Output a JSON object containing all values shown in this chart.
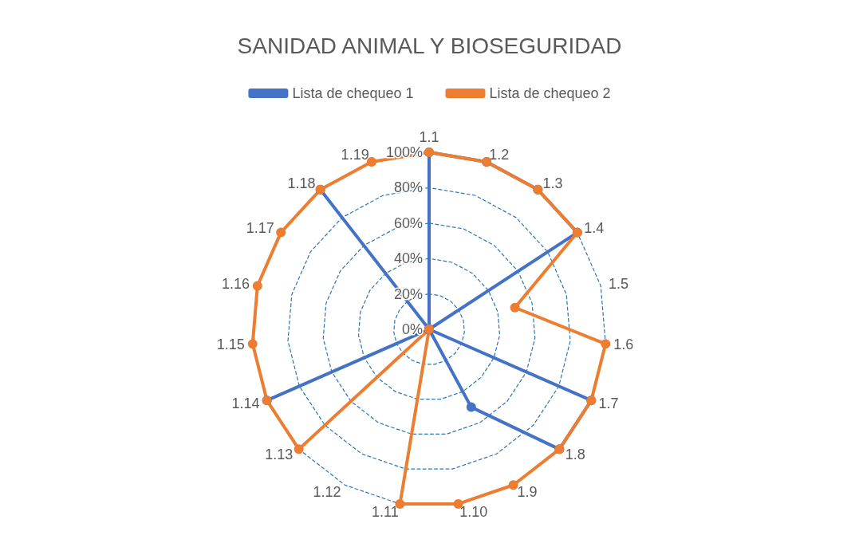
{
  "chart_data": {
    "type": "radar",
    "title": "SANIDAD ANIMAL Y BIOSEGURIDAD",
    "categories": [
      "1.1",
      "1.2",
      "1.3",
      "1.4",
      "1.5",
      "1.6",
      "1.7",
      "1.8",
      "1.9",
      "1.10",
      "1.11",
      "1.12",
      "1.13",
      "1.14",
      "1.15",
      "1.16",
      "1.17",
      "1.18",
      "1.19"
    ],
    "series": [
      {
        "name": "Lista de chequeo 1",
        "color": "#4472c4",
        "values": [
          100,
          100,
          100,
          100,
          0,
          0,
          100,
          100,
          50,
          0,
          0,
          0,
          0,
          100,
          0,
          0,
          0,
          100,
          0
        ]
      },
      {
        "name": "Lista de chequeo 2",
        "color": "#ed7d31",
        "values": [
          100,
          100,
          100,
          100,
          50,
          100,
          100,
          100,
          100,
          100,
          100,
          0,
          100,
          100,
          100,
          100,
          100,
          100,
          100
        ]
      }
    ],
    "ylim": [
      0,
      100
    ],
    "yticks": [
      {
        "value": 0,
        "label": "0%"
      },
      {
        "value": 20,
        "label": "20%"
      },
      {
        "value": 40,
        "label": "40%"
      },
      {
        "value": 60,
        "label": "60%"
      },
      {
        "value": 80,
        "label": "80%"
      },
      {
        "value": 100,
        "label": "100%"
      }
    ],
    "grid": true,
    "legend": "top",
    "marker": "circle",
    "line_style": "solid"
  }
}
